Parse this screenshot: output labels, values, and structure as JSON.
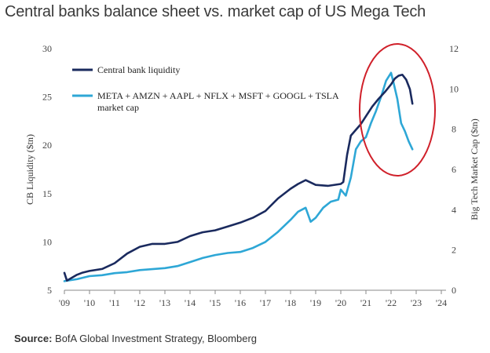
{
  "chart_data": {
    "type": "line",
    "title": "Central banks balance sheet vs. market cap of US Mega Tech",
    "source_label": "Source:",
    "source_text": "BofA Global Investment Strategy, Bloomberg",
    "ylabel_left": "CB Liquidity ($tn)",
    "ylabel_right": "Big Tech Market Cap ($tn)",
    "x_ticks": [
      "'09",
      "'10",
      "'11",
      "'12",
      "'13",
      "'14",
      "'15",
      "'16",
      "'17",
      "'18",
      "'19",
      "'20",
      "'21",
      "'22",
      "'23",
      "'24"
    ],
    "xlim": [
      2009,
      2024
    ],
    "ylim_left": [
      5,
      30
    ],
    "ylim_right": [
      0,
      12
    ],
    "left_ticks": [
      5,
      10,
      15,
      20,
      25,
      30
    ],
    "right_ticks": [
      0,
      2,
      4,
      6,
      8,
      10,
      12
    ],
    "legend_position": "top-left",
    "series": [
      {
        "name": "Central bank liquidity",
        "axis": "left",
        "color": "#1a2a5e",
        "x": [
          2009.0,
          2009.1,
          2009.3,
          2009.5,
          2009.7,
          2010.0,
          2010.5,
          2011.0,
          2011.5,
          2012.0,
          2012.5,
          2013.0,
          2013.5,
          2014.0,
          2014.5,
          2015.0,
          2015.5,
          2016.0,
          2016.5,
          2017.0,
          2017.5,
          2018.0,
          2018.3,
          2018.6,
          2019.0,
          2019.5,
          2020.0,
          2020.1,
          2020.25,
          2020.4,
          2020.6,
          2020.8,
          2021.0,
          2021.25,
          2021.5,
          2021.75,
          2022.0,
          2022.15,
          2022.3,
          2022.45,
          2022.6,
          2022.75,
          2022.85
        ],
        "values": [
          6.8,
          6.0,
          6.3,
          6.6,
          6.8,
          7.0,
          7.2,
          7.8,
          8.8,
          9.5,
          9.8,
          9.8,
          10.0,
          10.6,
          11.0,
          11.2,
          11.6,
          12.0,
          12.5,
          13.2,
          14.5,
          15.5,
          16.0,
          16.4,
          15.9,
          15.8,
          16.0,
          16.2,
          19.0,
          21.0,
          21.6,
          22.2,
          23.0,
          24.0,
          24.8,
          25.5,
          26.3,
          26.9,
          27.2,
          27.3,
          26.8,
          25.8,
          24.3
        ]
      },
      {
        "name": "META + AMZN + AAPL + NFLX + MSFT + GOOGL + TSLA market cap",
        "axis": "right",
        "color": "#2ea7d6",
        "x": [
          2009.0,
          2009.5,
          2010.0,
          2010.5,
          2011.0,
          2011.5,
          2012.0,
          2012.5,
          2013.0,
          2013.5,
          2014.0,
          2014.5,
          2015.0,
          2015.5,
          2016.0,
          2016.5,
          2017.0,
          2017.5,
          2018.0,
          2018.3,
          2018.6,
          2018.8,
          2019.0,
          2019.3,
          2019.6,
          2019.9,
          2020.0,
          2020.2,
          2020.4,
          2020.6,
          2020.8,
          2021.0,
          2021.2,
          2021.4,
          2021.6,
          2021.8,
          2022.0,
          2022.1,
          2022.25,
          2022.4,
          2022.55,
          2022.7,
          2022.85
        ],
        "values": [
          0.45,
          0.55,
          0.7,
          0.75,
          0.85,
          0.9,
          1.0,
          1.05,
          1.1,
          1.2,
          1.4,
          1.6,
          1.75,
          1.85,
          1.9,
          2.1,
          2.4,
          2.9,
          3.5,
          3.9,
          4.1,
          3.4,
          3.6,
          4.1,
          4.4,
          4.5,
          5.0,
          4.7,
          5.6,
          7.0,
          7.4,
          7.6,
          8.3,
          8.9,
          9.6,
          10.4,
          10.8,
          10.3,
          9.5,
          8.3,
          7.9,
          7.4,
          7.0
        ]
      }
    ],
    "annotation": "red ellipse highlighting 2021-2022 peak"
  }
}
